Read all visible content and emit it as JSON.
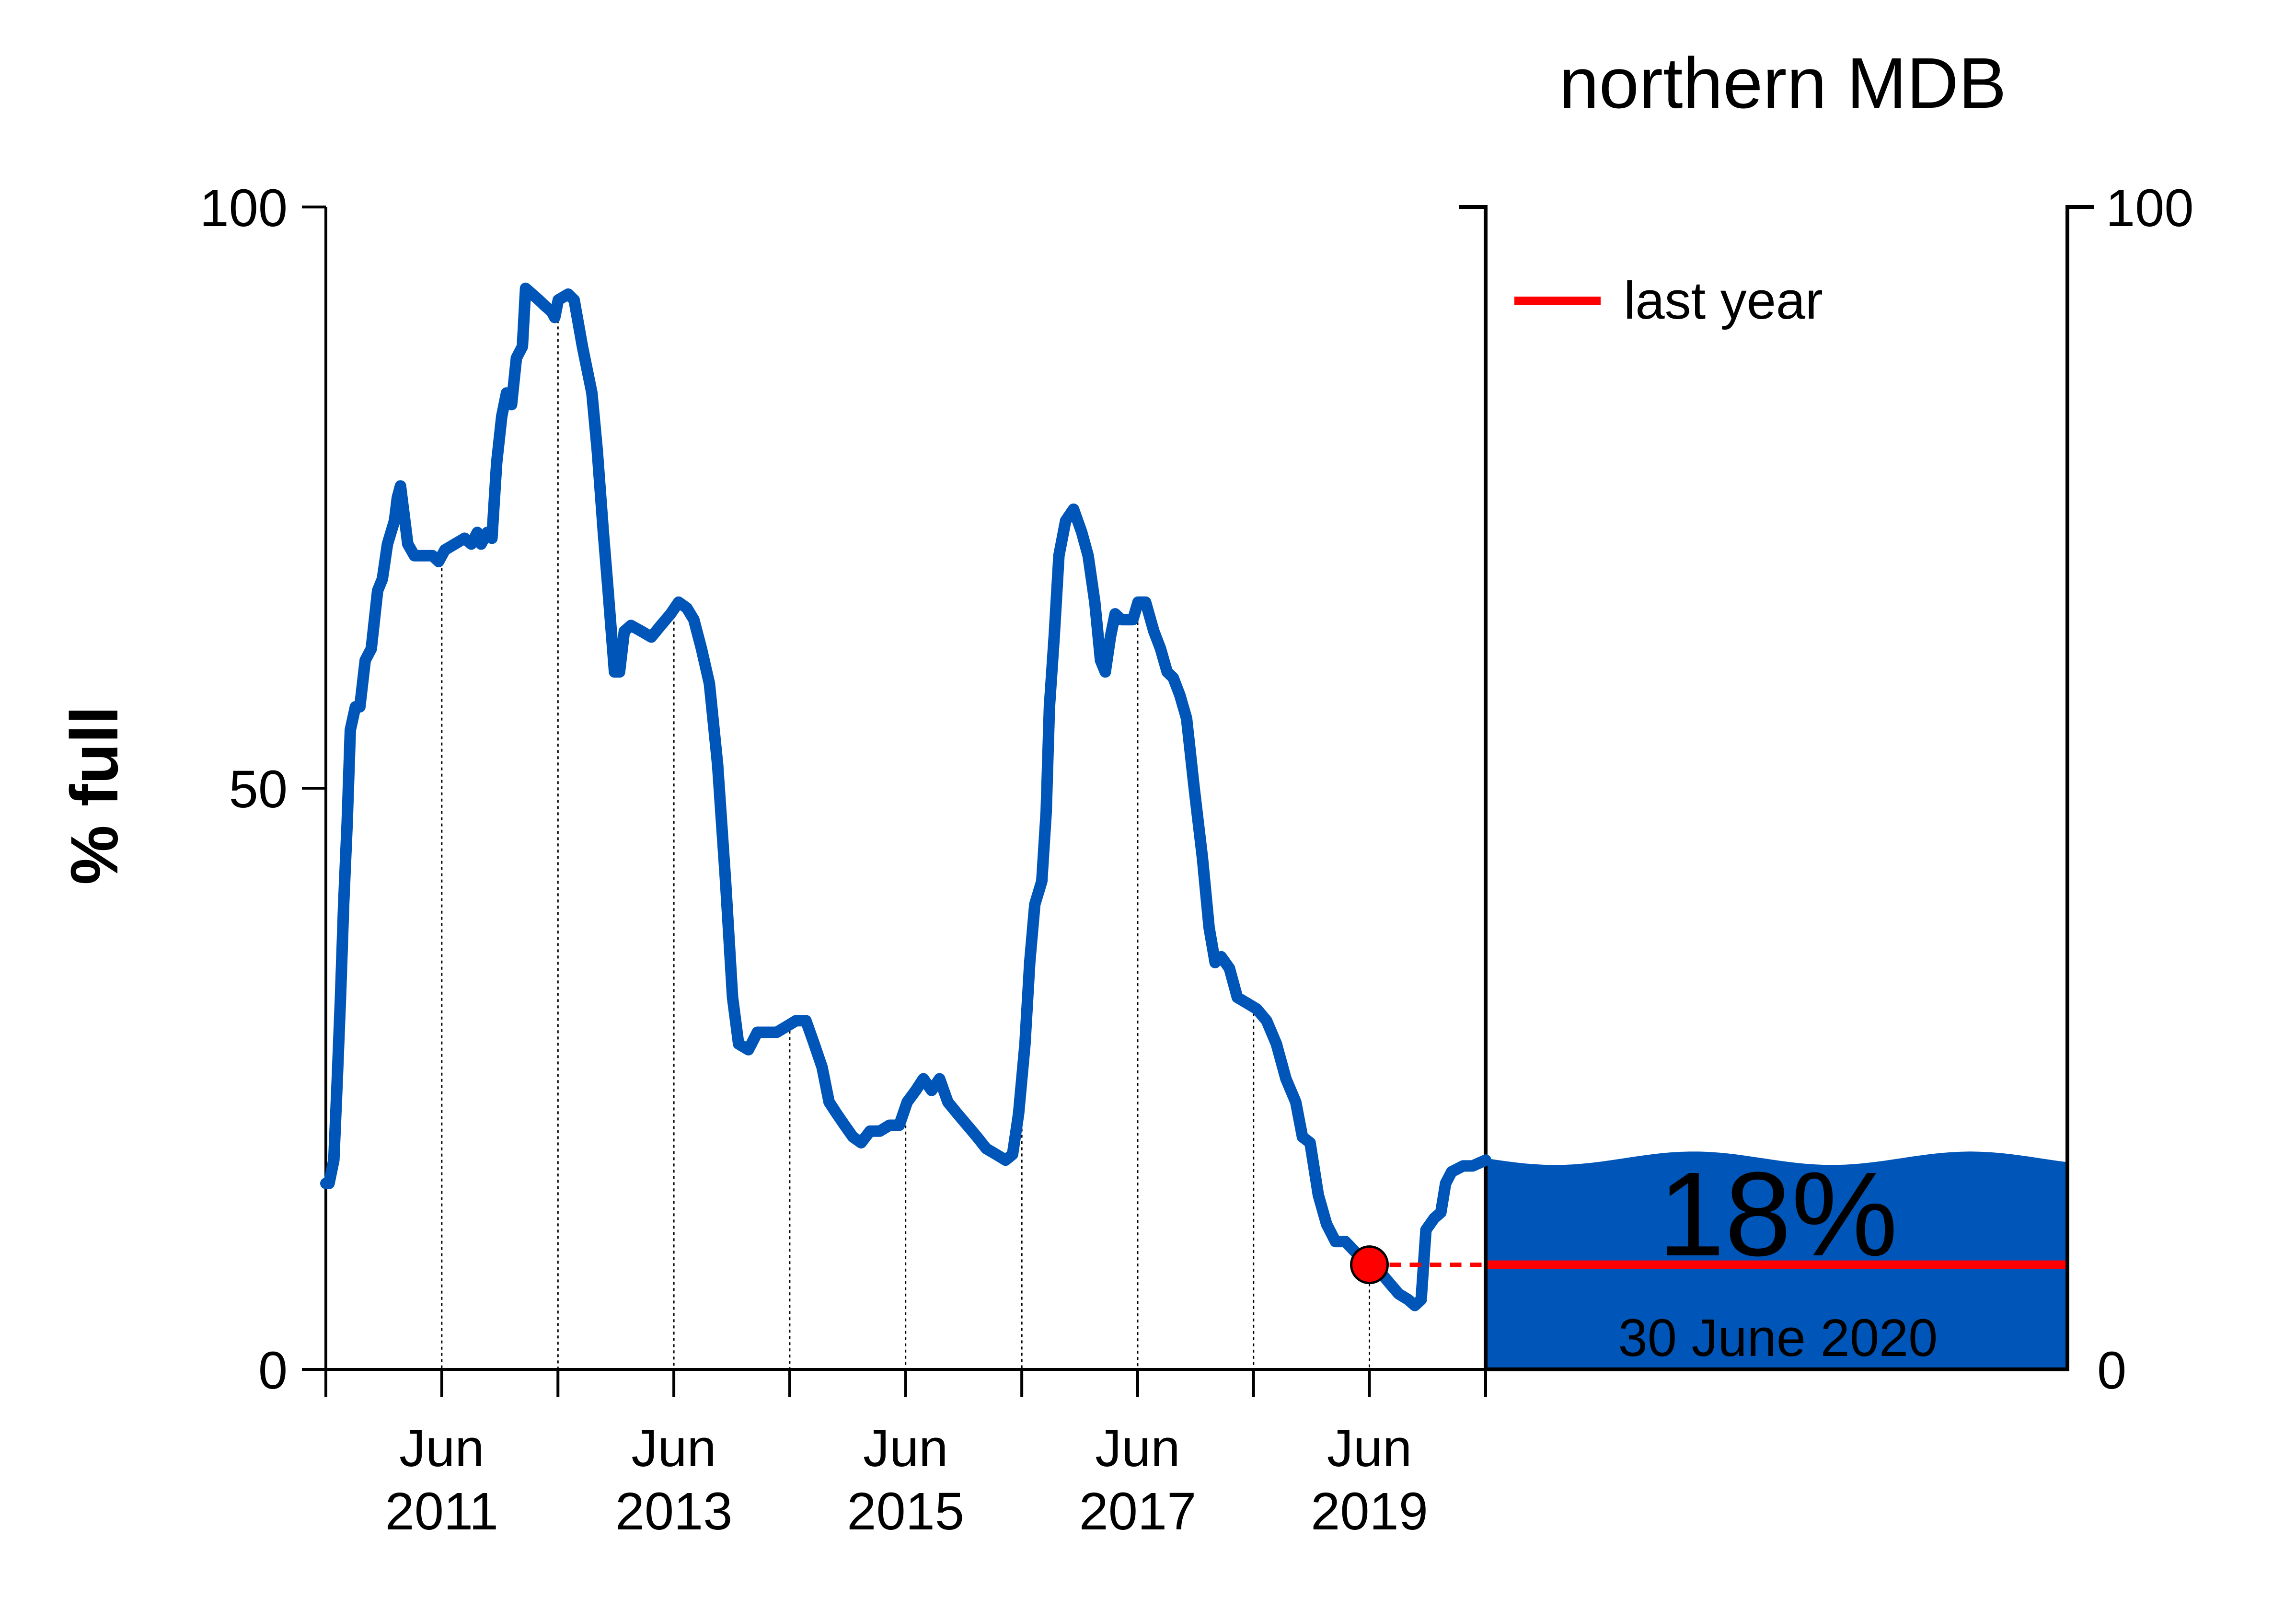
{
  "colors": {
    "series": "#0055B8",
    "last_year": "#FF0000",
    "fill_label": "#FFFFFF",
    "axis": "#000000"
  },
  "chart_data": {
    "type": "line",
    "title": "northern MDB",
    "ylabel": "% full",
    "ylim": [
      0,
      100
    ],
    "yticks": [
      0,
      50,
      100
    ],
    "xlim": [
      "2010-06-30",
      "2020-06-30"
    ],
    "xticks": [
      {
        "date": "2011-06-30",
        "label_line1": "Jun",
        "label_line2": "2011"
      },
      {
        "date": "2013-06-30",
        "label_line1": "Jun",
        "label_line2": "2013"
      },
      {
        "date": "2015-06-30",
        "label_line1": "Jun",
        "label_line2": "2015"
      },
      {
        "date": "2017-06-30",
        "label_line1": "Jun",
        "label_line2": "2017"
      },
      {
        "date": "2019-06-30",
        "label_line1": "Jun",
        "label_line2": "2019"
      }
    ],
    "minor_ticks": [
      "2010-06-30",
      "2012-06-30",
      "2014-06-30",
      "2016-06-30",
      "2018-06-30",
      "2020-06-30"
    ],
    "series": [
      {
        "points": [
          [
            "2010-06-30",
            16
          ],
          [
            "2010-07-10",
            16
          ],
          [
            "2010-07-25",
            18
          ],
          [
            "2010-08-05",
            25
          ],
          [
            "2010-08-15",
            32
          ],
          [
            "2010-08-25",
            40
          ],
          [
            "2010-09-05",
            47
          ],
          [
            "2010-09-15",
            55
          ],
          [
            "2010-10-01",
            57
          ],
          [
            "2010-10-15",
            57
          ],
          [
            "2010-11-01",
            61
          ],
          [
            "2010-11-20",
            62
          ],
          [
            "2010-12-10",
            67
          ],
          [
            "2010-12-25",
            68
          ],
          [
            "2011-01-10",
            71
          ],
          [
            "2011-02-01",
            73
          ],
          [
            "2011-02-10",
            75
          ],
          [
            "2011-02-20",
            76
          ],
          [
            "2011-03-15",
            71
          ],
          [
            "2011-04-05",
            70
          ],
          [
            "2011-05-01",
            70
          ],
          [
            "2011-06-01",
            70
          ],
          [
            "2011-06-20",
            69.5
          ],
          [
            "2011-07-10",
            70.5
          ],
          [
            "2011-08-10",
            71
          ],
          [
            "2011-09-10",
            71.5
          ],
          [
            "2011-10-01",
            71
          ],
          [
            "2011-10-20",
            72
          ],
          [
            "2011-11-01",
            71
          ],
          [
            "2011-11-20",
            72
          ],
          [
            "2011-12-05",
            71.5
          ],
          [
            "2011-12-20",
            78
          ],
          [
            "2012-01-05",
            82
          ],
          [
            "2012-01-20",
            84
          ],
          [
            "2012-02-05",
            83
          ],
          [
            "2012-02-20",
            87
          ],
          [
            "2012-03-10",
            88
          ],
          [
            "2012-03-20",
            93
          ],
          [
            "2012-04-10",
            92.5
          ],
          [
            "2012-05-01",
            92
          ],
          [
            "2012-05-20",
            91.5
          ],
          [
            "2012-06-10",
            91
          ],
          [
            "2012-06-20",
            90.5
          ],
          [
            "2012-07-01",
            92
          ],
          [
            "2012-08-01",
            92.5
          ],
          [
            "2012-08-20",
            92
          ],
          [
            "2012-09-15",
            88
          ],
          [
            "2012-10-15",
            84
          ],
          [
            "2012-11-01",
            79
          ],
          [
            "2012-11-20",
            72
          ],
          [
            "2012-12-05",
            67
          ],
          [
            "2012-12-25",
            60
          ],
          [
            "2013-01-10",
            60
          ],
          [
            "2013-01-25",
            63.5
          ],
          [
            "2013-02-15",
            64
          ],
          [
            "2013-03-20",
            63.5
          ],
          [
            "2013-04-20",
            63
          ],
          [
            "2013-05-20",
            64
          ],
          [
            "2013-06-20",
            65
          ],
          [
            "2013-07-15",
            66
          ],
          [
            "2013-08-10",
            65.5
          ],
          [
            "2013-09-01",
            64.5
          ],
          [
            "2013-09-25",
            62
          ],
          [
            "2013-10-20",
            59
          ],
          [
            "2013-11-15",
            52
          ],
          [
            "2013-12-10",
            42
          ],
          [
            "2014-01-01",
            32
          ],
          [
            "2014-01-20",
            28
          ],
          [
            "2014-02-20",
            27.5
          ],
          [
            "2014-03-20",
            29
          ],
          [
            "2014-04-20",
            29
          ],
          [
            "2014-05-20",
            29
          ],
          [
            "2014-06-20",
            29.5
          ],
          [
            "2014-07-20",
            30
          ],
          [
            "2014-08-20",
            30
          ],
          [
            "2014-09-15",
            28
          ],
          [
            "2014-10-10",
            26
          ],
          [
            "2014-11-01",
            23
          ],
          [
            "2014-11-25",
            22
          ],
          [
            "2014-12-20",
            21
          ],
          [
            "2015-01-15",
            20
          ],
          [
            "2015-02-10",
            19.5
          ],
          [
            "2015-03-10",
            20.5
          ],
          [
            "2015-04-10",
            20.5
          ],
          [
            "2015-05-10",
            21
          ],
          [
            "2015-06-10",
            21
          ],
          [
            "2015-07-05",
            23
          ],
          [
            "2015-08-01",
            24
          ],
          [
            "2015-08-25",
            25
          ],
          [
            "2015-09-20",
            24
          ],
          [
            "2015-10-15",
            25
          ],
          [
            "2015-11-10",
            23
          ],
          [
            "2015-12-10",
            22
          ],
          [
            "2016-01-10",
            21
          ],
          [
            "2016-02-10",
            20
          ],
          [
            "2016-03-10",
            19
          ],
          [
            "2016-04-10",
            18.5
          ],
          [
            "2016-05-10",
            18
          ],
          [
            "2016-06-01",
            18.5
          ],
          [
            "2016-06-20",
            22
          ],
          [
            "2016-07-10",
            28
          ],
          [
            "2016-07-25",
            35
          ],
          [
            "2016-08-10",
            40
          ],
          [
            "2016-09-01",
            42
          ],
          [
            "2016-09-15",
            48
          ],
          [
            "2016-09-25",
            57
          ],
          [
            "2016-10-10",
            63
          ],
          [
            "2016-10-25",
            70
          ],
          [
            "2016-11-15",
            73
          ],
          [
            "2016-12-10",
            74
          ],
          [
            "2017-01-05",
            72
          ],
          [
            "2017-01-25",
            70
          ],
          [
            "2017-02-15",
            66
          ],
          [
            "2017-03-05",
            61
          ],
          [
            "2017-03-20",
            60
          ],
          [
            "2017-04-05",
            63
          ],
          [
            "2017-04-20",
            65
          ],
          [
            "2017-05-10",
            64.5
          ],
          [
            "2017-06-15",
            64.5
          ],
          [
            "2017-07-01",
            66
          ],
          [
            "2017-07-25",
            66
          ],
          [
            "2017-08-20",
            63.5
          ],
          [
            "2017-09-10",
            62
          ],
          [
            "2017-10-01",
            60
          ],
          [
            "2017-10-20",
            59.5
          ],
          [
            "2017-11-10",
            58
          ],
          [
            "2017-12-01",
            56
          ],
          [
            "2017-12-25",
            50
          ],
          [
            "2018-01-20",
            44
          ],
          [
            "2018-02-10",
            38
          ],
          [
            "2018-03-01",
            35
          ],
          [
            "2018-03-20",
            35.5
          ],
          [
            "2018-04-15",
            34.5
          ],
          [
            "2018-05-10",
            32
          ],
          [
            "2018-06-10",
            31.5
          ],
          [
            "2018-07-10",
            31
          ],
          [
            "2018-08-10",
            30
          ],
          [
            "2018-09-10",
            28
          ],
          [
            "2018-10-10",
            25
          ],
          [
            "2018-11-10",
            23
          ],
          [
            "2018-12-01",
            20
          ],
          [
            "2018-12-25",
            19.5
          ],
          [
            "2019-01-20",
            15
          ],
          [
            "2019-02-15",
            12.5
          ],
          [
            "2019-03-15",
            11
          ],
          [
            "2019-04-15",
            11
          ],
          [
            "2019-05-20",
            10
          ],
          [
            "2019-06-30",
            9
          ],
          [
            "2019-07-30",
            8.5
          ],
          [
            "2019-08-30",
            7.5
          ],
          [
            "2019-09-30",
            6.5
          ],
          [
            "2019-10-30",
            6
          ],
          [
            "2019-11-20",
            5.5
          ],
          [
            "2019-12-10",
            6
          ],
          [
            "2019-12-25",
            12
          ],
          [
            "2020-01-20",
            13
          ],
          [
            "2020-02-10",
            13.5
          ],
          [
            "2020-02-25",
            16
          ],
          [
            "2020-03-15",
            17
          ],
          [
            "2020-04-20",
            17.5
          ],
          [
            "2020-05-20",
            17.5
          ],
          [
            "2020-06-30",
            18
          ]
        ]
      }
    ],
    "marker": {
      "date": "2019-06-30",
      "value": 9
    },
    "gauge": {
      "value": 18,
      "value_label": "18%",
      "date_label": "30 June 2020",
      "yticks": [
        0,
        100
      ],
      "last_year_value": 9
    },
    "legend": {
      "label": "last year",
      "placement": "top-left of gauge"
    }
  }
}
